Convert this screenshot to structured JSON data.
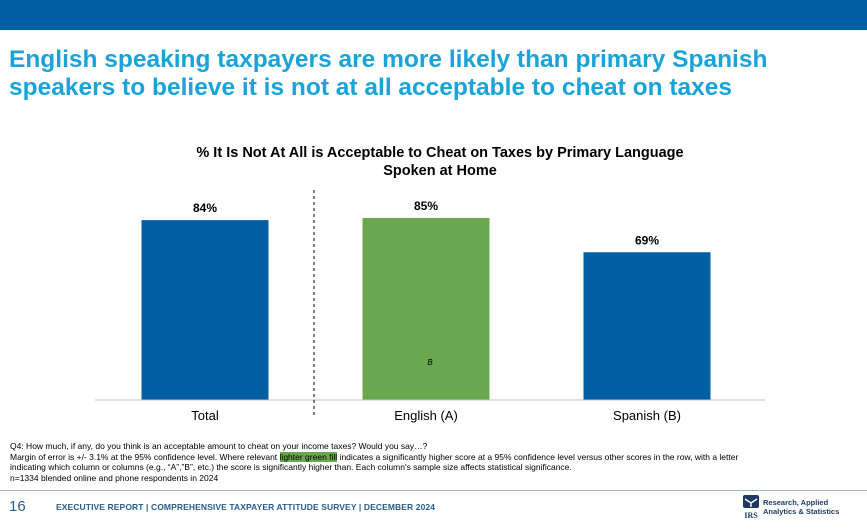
{
  "colors": {
    "header_bar": "#005ea2",
    "headline": "#1aa3d9",
    "bar_default": "#005ea2",
    "bar_significant": "#6aa84f",
    "footer_text": "#2b5d8a"
  },
  "headline": {
    "line1": "English speaking taxpayers are more likely than primary Spanish",
    "line2": "speakers to believe it is not at all acceptable to cheat on taxes"
  },
  "chart_data": {
    "type": "bar",
    "title_line1": "% It Is Not At All is Acceptable to Cheat on Taxes by Primary Language",
    "title_line2": "Spoken at Home",
    "categories": [
      "Total",
      "English (A)",
      "Spanish (B)"
    ],
    "values": [
      84,
      85,
      69
    ],
    "value_labels": [
      "84%",
      "85%",
      "69%"
    ],
    "bar_colors": [
      "#005ea2",
      "#6aa84f",
      "#005ea2"
    ],
    "significance_letters": [
      "",
      "B",
      ""
    ],
    "ylim": [
      0,
      100
    ],
    "grid": false,
    "divider_after_category": "Total"
  },
  "notes": {
    "question": "Q4: How much, if any, do you think is an acceptable amount to cheat on your income taxes? Would you say…?",
    "moe_before": "Margin of error is +/- 3.1% at the 95% confidence level. Where relevant ",
    "moe_highlight": "lighter green fill",
    "moe_after": " indicates a significantly higher score at a 95% confidence level versus other scores in the row, with a letter",
    "moe_line2": "indicating which column or columns (e.g., “A”,”B”, etc.) the score is significantly higher than. Each column's sample size affects statistical significance.",
    "sample": "n=1334 blended online and phone respondents in 2024"
  },
  "footer": {
    "page_number": "16",
    "text": "EXECUTIVE REPORT | COMPREHENSIVE TAXPAYER ATTITUDE SURVEY | DECEMBER 2024",
    "logo_line1": "Research, Applied",
    "logo_line2": "Analytics & Statistics",
    "logo_mark": "IRS"
  }
}
